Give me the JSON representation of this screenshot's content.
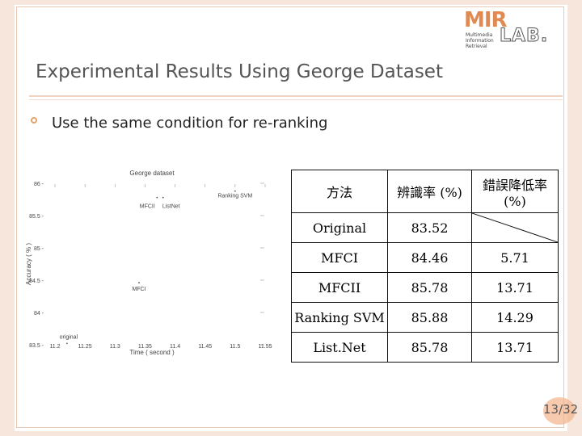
{
  "logo": {
    "mir": "MIR",
    "lines": [
      "Multimedia",
      "Information",
      "Retrieval"
    ],
    "lab": "LAB."
  },
  "slide": {
    "title": "Experimental Results Using George Dataset",
    "bullet": "Use the same condition for re-ranking",
    "page": "13/32"
  },
  "chart_data": {
    "type": "scatter",
    "title": "George dataset",
    "xlabel": "Time ( second )",
    "ylabel": "Accuracy ( % )",
    "xlim": [
      11.2,
      11.55
    ],
    "ylim": [
      83.5,
      86
    ],
    "x_ticks": [
      "11.2",
      "11.25",
      "11.3",
      "11.35",
      "11.4",
      "11.45",
      "11.5",
      "11.55"
    ],
    "y_ticks": [
      "83.5",
      "84",
      "84.5",
      "85",
      "85.5",
      "86"
    ],
    "points": [
      {
        "label": "original",
        "x": 11.22,
        "y": 83.52
      },
      {
        "label": "MFCI",
        "x": 11.34,
        "y": 84.46
      },
      {
        "label": "MFCII",
        "x": 11.37,
        "y": 85.78
      },
      {
        "label": "ListNet",
        "x": 11.38,
        "y": 85.78
      },
      {
        "label": "Ranking SVM",
        "x": 11.5,
        "y": 85.88
      }
    ],
    "grid": false
  },
  "table": {
    "headers": [
      "方法",
      "辨識率 (%)",
      "錯誤降低率 (%)"
    ],
    "rows": [
      {
        "method": "Original",
        "accuracy": "83.52",
        "error_reduction": ""
      },
      {
        "method": "MFCI",
        "accuracy": "84.46",
        "error_reduction": "5.71"
      },
      {
        "method": "MFCII",
        "accuracy": "85.78",
        "error_reduction": "13.71"
      },
      {
        "method": "Ranking SVM",
        "accuracy": "85.88",
        "error_reduction": "14.29"
      },
      {
        "method": "List.Net",
        "accuracy": "85.78",
        "error_reduction": "13.71"
      }
    ]
  }
}
